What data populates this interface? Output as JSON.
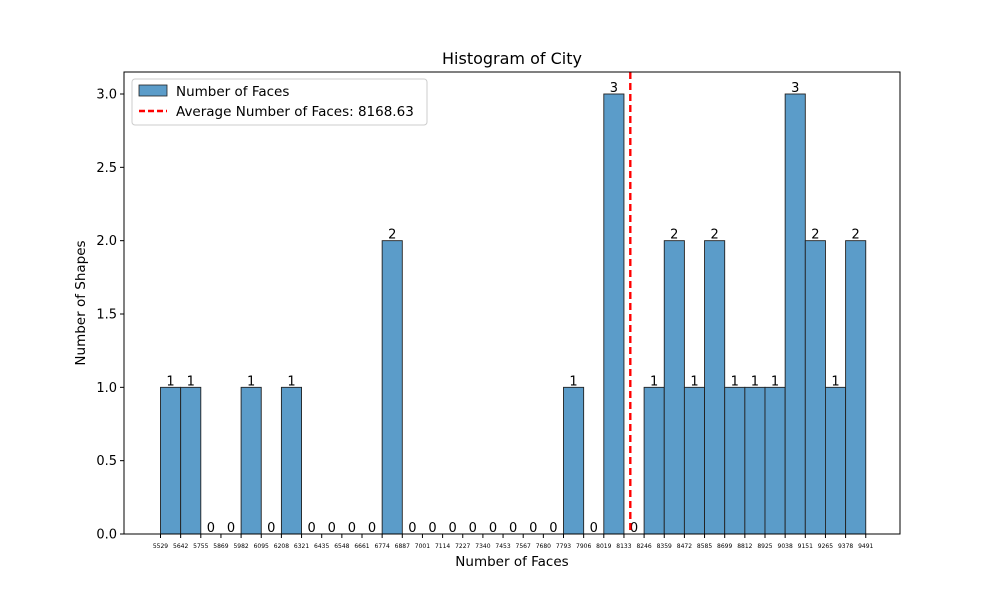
{
  "chart_data": {
    "type": "bar",
    "title": "Histogram of City",
    "xlabel": "Number of Faces",
    "ylabel": "Number of Shapes",
    "ylim": [
      0,
      3.15
    ],
    "yticks": [
      "0.0",
      "0.5",
      "1.0",
      "1.5",
      "2.0",
      "2.5",
      "3.0"
    ],
    "bin_edges": [
      5529,
      5642,
      5755,
      5869,
      5982,
      6095,
      6208,
      6321,
      6435,
      6548,
      6661,
      6774,
      6887,
      7001,
      7114,
      7227,
      7340,
      7453,
      7567,
      7680,
      7793,
      7906,
      8019,
      8133,
      8246,
      8359,
      8472,
      8585,
      8699,
      8812,
      8925,
      9038,
      9151,
      9265,
      9378,
      9491
    ],
    "xtick_labels": [
      "5529",
      "5642",
      "5755",
      "5869",
      "5982",
      "6095",
      "6208",
      "6321",
      "6435",
      "6548",
      "6661",
      "6774",
      "6887",
      "7001",
      "7114",
      "7227",
      "7340",
      "7453",
      "7567",
      "7680",
      "7793",
      "7906",
      "8019",
      "8133",
      "8246",
      "8359",
      "8472",
      "8585",
      "8699",
      "8812",
      "8925",
      "9038",
      "9151",
      "9265",
      "9378",
      "9491"
    ],
    "values": [
      1,
      1,
      0,
      0,
      1,
      0,
      1,
      0,
      0,
      0,
      0,
      2,
      0,
      0,
      0,
      0,
      0,
      0,
      0,
      0,
      1,
      0,
      3,
      0,
      1,
      2,
      1,
      2,
      1,
      1,
      1,
      3,
      2,
      1,
      2
    ],
    "average": 8168.63,
    "series": [
      {
        "name": "Number of Faces",
        "color": "#5b9cc9"
      },
      {
        "name": "Average Number of Faces: 8168.63",
        "color": "#ff0000"
      }
    ],
    "legend_position": "top-left",
    "grid": false
  }
}
